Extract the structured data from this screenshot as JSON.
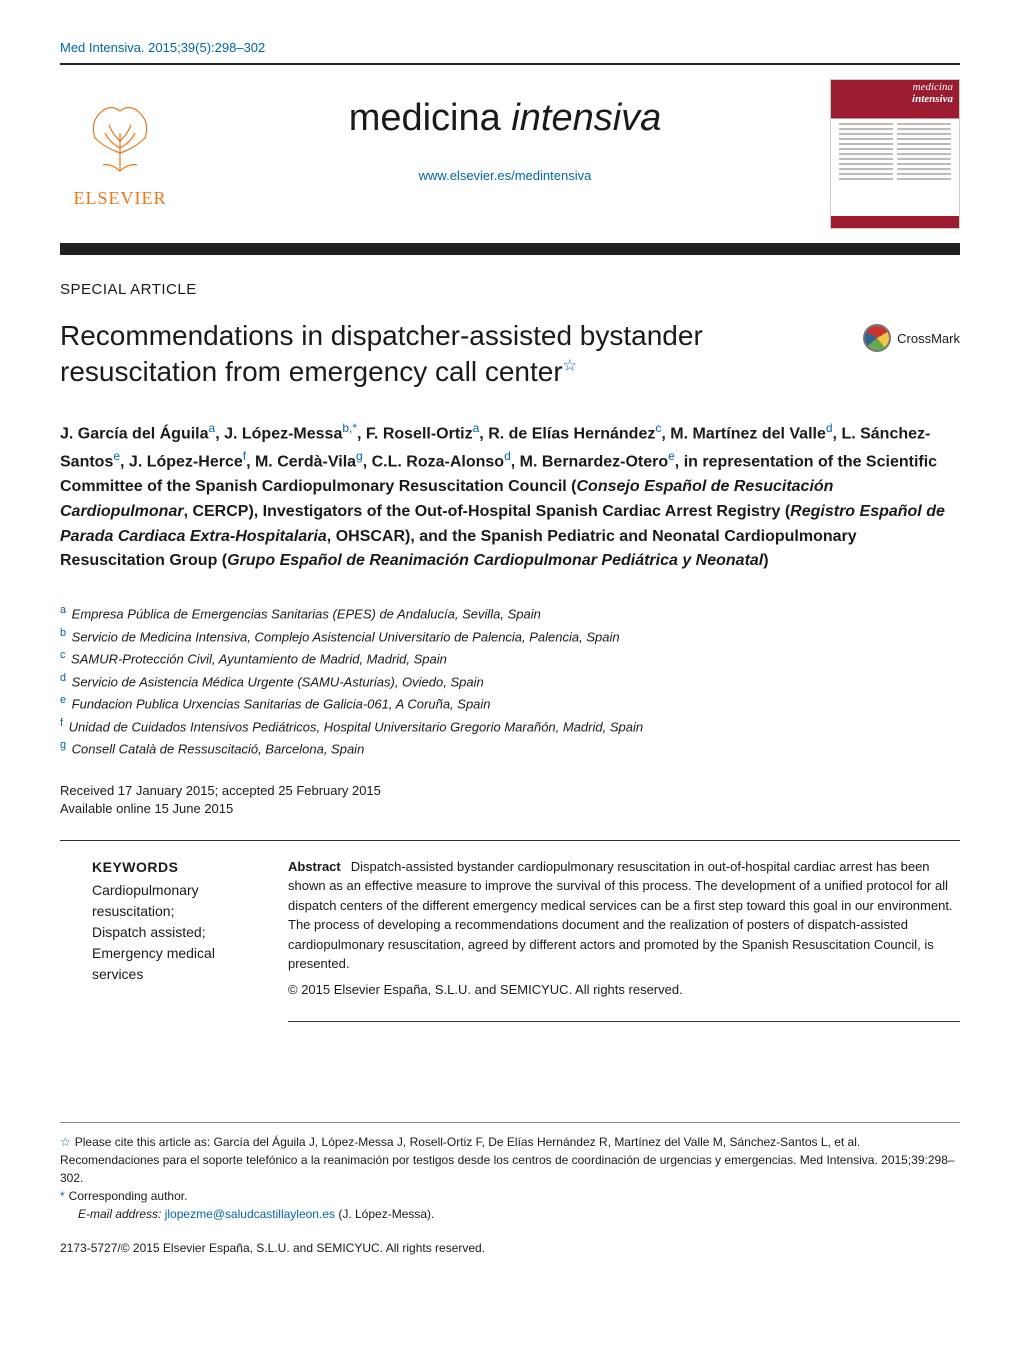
{
  "header_citation": "Med Intensiva. 2015;39(5):298–302",
  "banner": {
    "elsevier_text": "ELSEVIER",
    "journal_title_prefix": "medicina ",
    "journal_title_italic": "intensiva",
    "journal_url": "www.elsevier.es/medintensiva",
    "cover_title_line1": "medicina",
    "cover_title_line2": "intensiva"
  },
  "article": {
    "section_label": "SPECIAL ARTICLE",
    "title": "Recommendations in dispatcher-assisted bystander resuscitation from emergency call center",
    "crossmark_label": "CrossMark",
    "authors_html": "J. García del Águila<sup>a</sup>, J. López-Messa<sup>b,*</sup>, F. Rosell-Ortiz<sup>a</sup>, R. de Elías Hernández<sup>c</sup>, M. Martínez del Valle<sup>d</sup>, L. Sánchez-Santos<sup>e</sup>, J. López-Herce<sup>f</sup>, M. Cerdà-Vila<sup>g</sup>, C.L. Roza-Alonso<sup>d</sup>, M. Bernardez-Otero<sup>e</sup>, in representation of the Scientific Committee of the Spanish Cardiopulmonary Resuscitation Council (<i>Consejo Español de Resucitación Cardiopulmonar</i>, CERCP), Investigators of the Out-of-Hospital Spanish Cardiac Arrest Registry (<i>Registro Español de Parada Cardiaca Extra-Hospitalaria</i>, OHSCAR), and the Spanish Pediatric and Neonatal Cardiopulmonary Resuscitation Group (<i>Grupo Español de Reanimación Cardiopulmonar Pediátrica y Neonatal</i>)",
    "affiliations": [
      {
        "sup": "a",
        "text": "Empresa Pública de Emergencias Sanitarias (EPES) de Andalucía, Sevilla, Spain"
      },
      {
        "sup": "b",
        "text": "Servicio de Medicina Intensiva, Complejo Asistencial Universitario de Palencia, Palencia, Spain"
      },
      {
        "sup": "c",
        "text": "SAMUR-Protección Civil, Ayuntamiento de Madrid, Madrid, Spain"
      },
      {
        "sup": "d",
        "text": "Servicio de Asistencia Médica Urgente (SAMU-Asturias), Oviedo, Spain"
      },
      {
        "sup": "e",
        "text": "Fundacion Publica Urxencias Sanitarias de Galicia-061, A Coruña, Spain"
      },
      {
        "sup": "f",
        "text": "Unidad de Cuidados Intensivos Pediátricos, Hospital Universitario Gregorio Marañón, Madrid, Spain"
      },
      {
        "sup": "g",
        "text": "Consell Català de Ressuscitació, Barcelona, Spain"
      }
    ],
    "received": "Received 17 January 2015; accepted 25 February 2015",
    "online": "Available online 15 June 2015",
    "keywords_heading": "KEYWORDS",
    "keywords_list": "Cardiopulmonary resuscitation;\nDispatch assisted;\nEmergency medical services",
    "abstract_label": "Abstract",
    "abstract_text": "Dispatch-assisted bystander cardiopulmonary resuscitation in out-of-hospital cardiac arrest has been shown as an effective measure to improve the survival of this process. The development of a unified protocol for all dispatch centers of the different emergency medical services can be a first step toward this goal in our environment. The process of developing a recommendations document and the realization of posters of dispatch-assisted cardiopulmonary resuscitation, agreed by different actors and promoted by the Spanish Resuscitation Council, is presented.",
    "abstract_copyright": "© 2015 Elsevier España, S.L.U. and SEMICYUC. All rights reserved."
  },
  "footnotes": {
    "cite": "Please cite this article as: García del Águila J, López-Messa J, Rosell-Ortiz F, De Elías Hernández R, Martínez del Valle M, Sánchez-Santos L, et al. Recomendaciones para el soporte telefónico a la reanimación por testigos desde los centros de coordinación de urgencias y emergencias. Med Intensiva. 2015;39:298–302.",
    "corresponding": "Corresponding author.",
    "email_label": "E-mail address:",
    "email": "jlopezme@saludcastillayleon.es",
    "email_owner": "(J. López-Messa).",
    "issn_line": "2173-5727/© 2015 Elsevier España, S.L.U. and SEMICYUC. All rights reserved."
  },
  "colors": {
    "link": "#0066a6",
    "elsevier_orange": "#e67817",
    "banner_bar": "#231f20",
    "cover_red": "#9b1b2f",
    "text": "#1a1a1a",
    "rule": "#333333"
  }
}
